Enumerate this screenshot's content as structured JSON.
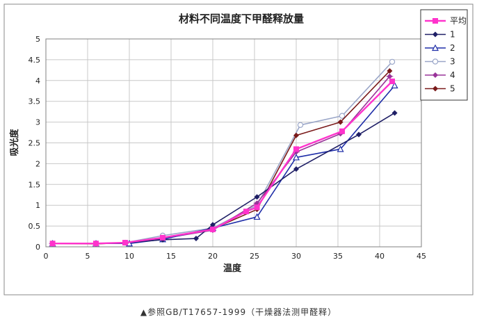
{
  "caption": "▲参照GB/T17657-1999（干燥器法测甲醛释）",
  "chart_data": {
    "type": "line",
    "title": "材料不同温度下甲醛释放量",
    "xlabel": "温度",
    "ylabel": "吸光度",
    "xlim": [
      0,
      45
    ],
    "ylim": [
      0,
      5
    ],
    "xticks": [
      0,
      5,
      10,
      15,
      20,
      25,
      30,
      35,
      40,
      45
    ],
    "yticks": [
      0,
      0.5,
      1,
      1.5,
      2,
      2.5,
      3,
      3.5,
      4,
      4.5,
      5
    ],
    "grid": true,
    "legend_position": "top-right",
    "series": [
      {
        "name": "平均",
        "color": "#ff33cc",
        "marker": "square",
        "x": [
          0.8,
          6,
          9.5,
          14,
          20,
          24,
          25.3,
          30,
          35.5,
          41.5
        ],
        "y": [
          0.08,
          0.08,
          0.1,
          0.22,
          0.42,
          0.85,
          0.95,
          2.35,
          2.78,
          3.98
        ]
      },
      {
        "name": "1",
        "color": "#1f1f66",
        "marker": "diamond",
        "x": [
          0.8,
          6,
          9.5,
          14,
          18,
          20,
          25.3,
          30,
          37.5,
          41.8
        ],
        "y": [
          0.08,
          0.08,
          0.1,
          0.17,
          0.2,
          0.53,
          1.2,
          1.87,
          2.7,
          3.22
        ]
      },
      {
        "name": "2",
        "color": "#1f2ea8",
        "marker": "triangle-open",
        "x": [
          0.8,
          6,
          10,
          14,
          20,
          25.3,
          30,
          35.3,
          41.8
        ],
        "y": [
          0.08,
          0.08,
          0.08,
          0.18,
          0.45,
          0.72,
          2.15,
          2.35,
          3.88
        ]
      },
      {
        "name": "3",
        "color": "#9aa6c8",
        "marker": "circle-open",
        "x": [
          0.8,
          6,
          9.5,
          14,
          20,
          25.3,
          30.5,
          35.5,
          41.5
        ],
        "y": [
          0.08,
          0.08,
          0.1,
          0.27,
          0.45,
          1.0,
          2.93,
          3.15,
          4.45
        ]
      },
      {
        "name": "4",
        "color": "#993399",
        "marker": "diamond-cross",
        "x": [
          0.8,
          6,
          9.5,
          14,
          20,
          25.3,
          30,
          35.3,
          41.2
        ],
        "y": [
          0.08,
          0.08,
          0.1,
          0.2,
          0.4,
          1.05,
          2.28,
          2.72,
          4.1
        ]
      },
      {
        "name": "5",
        "color": "#7a1a1a",
        "marker": "diamond",
        "x": [
          0.8,
          6,
          9.5,
          14,
          20,
          25.3,
          30,
          35.3,
          41.2
        ],
        "y": [
          0.08,
          0.07,
          0.1,
          0.2,
          0.43,
          0.9,
          2.68,
          3.0,
          4.23
        ]
      }
    ]
  }
}
